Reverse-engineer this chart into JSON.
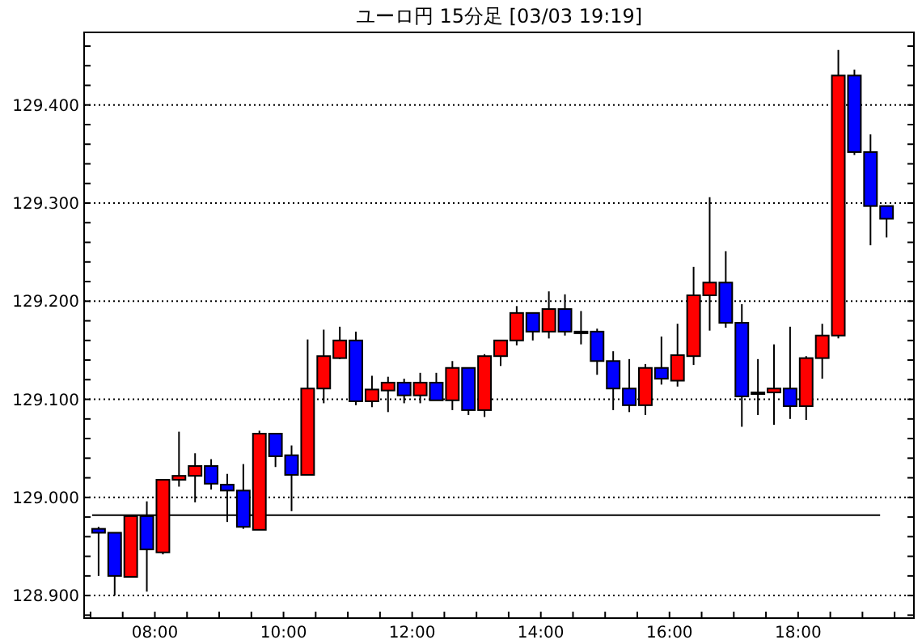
{
  "chart_data": {
    "type": "candlestick",
    "title": "ユーロ円 15分足 [03/03 19:19]",
    "x": [
      7.125,
      7.375,
      7.625,
      7.875,
      8.125,
      8.375,
      8.625,
      8.875,
      9.125,
      9.375,
      9.625,
      9.875,
      10.125,
      10.375,
      10.625,
      10.875,
      11.125,
      11.375,
      11.625,
      11.875,
      12.125,
      12.375,
      12.625,
      12.875,
      13.125,
      13.375,
      13.625,
      13.875,
      14.125,
      14.375,
      14.625,
      14.875,
      15.125,
      15.375,
      15.625,
      15.875,
      16.125,
      16.375,
      16.625,
      16.875,
      17.125,
      17.375,
      17.625,
      17.875,
      18.125,
      18.375,
      18.625,
      18.875,
      19.125,
      19.375
    ],
    "ohlc": [
      [
        128.968,
        128.97,
        128.92,
        128.964
      ],
      [
        128.964,
        128.964,
        128.9,
        128.92
      ],
      [
        128.919,
        128.981,
        128.919,
        128.981
      ],
      [
        128.981,
        128.996,
        128.904,
        128.947
      ],
      [
        128.944,
        129.018,
        128.942,
        129.018
      ],
      [
        129.018,
        129.067,
        129.011,
        129.022
      ],
      [
        129.022,
        129.045,
        128.995,
        129.032
      ],
      [
        129.032,
        129.039,
        129.008,
        129.014
      ],
      [
        129.013,
        129.024,
        128.975,
        129.007
      ],
      [
        129.007,
        129.034,
        128.968,
        128.97
      ],
      [
        128.967,
        129.068,
        128.967,
        129.065
      ],
      [
        129.065,
        129.065,
        129.031,
        129.042
      ],
      [
        129.043,
        129.053,
        128.986,
        129.023
      ],
      [
        129.023,
        129.161,
        129.023,
        129.111
      ],
      [
        129.111,
        129.171,
        129.096,
        129.144
      ],
      [
        129.142,
        129.174,
        129.141,
        129.16
      ],
      [
        129.16,
        129.169,
        129.094,
        129.098
      ],
      [
        129.098,
        129.124,
        129.092,
        129.11
      ],
      [
        129.109,
        129.123,
        129.087,
        129.117
      ],
      [
        129.117,
        129.121,
        129.096,
        129.104
      ],
      [
        129.104,
        129.127,
        129.096,
        129.117
      ],
      [
        129.117,
        129.127,
        129.099,
        129.099
      ],
      [
        129.099,
        129.139,
        129.089,
        129.132
      ],
      [
        129.132,
        129.132,
        129.084,
        129.089
      ],
      [
        129.089,
        129.146,
        129.082,
        129.144
      ],
      [
        129.144,
        129.16,
        129.134,
        129.16
      ],
      [
        129.16,
        129.195,
        129.155,
        129.188
      ],
      [
        129.188,
        129.188,
        129.16,
        129.169
      ],
      [
        129.169,
        129.21,
        129.162,
        129.192
      ],
      [
        129.192,
        129.207,
        129.165,
        129.169
      ],
      [
        129.169,
        129.19,
        129.156,
        129.169
      ],
      [
        129.169,
        129.172,
        129.125,
        129.139
      ],
      [
        129.139,
        129.149,
        129.089,
        129.111
      ],
      [
        129.111,
        129.141,
        129.087,
        129.094
      ],
      [
        129.094,
        129.136,
        129.084,
        129.132
      ],
      [
        129.132,
        129.164,
        129.115,
        129.121
      ],
      [
        129.119,
        129.177,
        129.113,
        129.145
      ],
      [
        129.144,
        129.235,
        129.135,
        129.206
      ],
      [
        129.206,
        129.306,
        129.17,
        129.219
      ],
      [
        129.219,
        129.251,
        129.173,
        129.178
      ],
      [
        129.178,
        129.197,
        129.072,
        129.103
      ],
      [
        129.107,
        129.141,
        129.084,
        129.107
      ],
      [
        129.107,
        129.156,
        129.074,
        129.111
      ],
      [
        129.111,
        129.174,
        129.08,
        129.093
      ],
      [
        129.093,
        129.144,
        129.079,
        129.142
      ],
      [
        129.142,
        129.177,
        129.121,
        129.165
      ],
      [
        129.165,
        129.456,
        129.162,
        129.43
      ],
      [
        129.43,
        129.436,
        129.349,
        129.352
      ],
      [
        129.352,
        129.37,
        129.257,
        129.297
      ],
      [
        129.297,
        129.297,
        129.265,
        129.284
      ]
    ],
    "colors": [
      "#0000ff",
      "#0000ff",
      "#ff0000",
      "#0000ff",
      "#ff0000",
      "#ff0000",
      "#ff0000",
      "#0000ff",
      "#0000ff",
      "#0000ff",
      "#ff0000",
      "#0000ff",
      "#0000ff",
      "#ff0000",
      "#ff0000",
      "#ff0000",
      "#0000ff",
      "#ff0000",
      "#ff0000",
      "#0000ff",
      "#ff0000",
      "#0000ff",
      "#ff0000",
      "#0000ff",
      "#ff0000",
      "#ff0000",
      "#ff0000",
      "#0000ff",
      "#ff0000",
      "#0000ff",
      "#000000",
      "#0000ff",
      "#0000ff",
      "#0000ff",
      "#ff0000",
      "#0000ff",
      "#ff0000",
      "#ff0000",
      "#ff0000",
      "#0000ff",
      "#0000ff",
      "#000000",
      "#ff0000",
      "#0000ff",
      "#ff0000",
      "#ff0000",
      "#ff0000",
      "#0000ff",
      "#0000ff",
      "#0000ff"
    ],
    "xlim": [
      6.9,
      19.8
    ],
    "xticks": [
      {
        "value": 7,
        "label": null
      },
      {
        "value": 7.5,
        "label": null
      },
      {
        "value": 8,
        "label": "08:00"
      },
      {
        "value": 8.5,
        "label": null
      },
      {
        "value": 9,
        "label": null
      },
      {
        "value": 9.5,
        "label": null
      },
      {
        "value": 10,
        "label": "10:00"
      },
      {
        "value": 10.5,
        "label": null
      },
      {
        "value": 11,
        "label": null
      },
      {
        "value": 11.5,
        "label": null
      },
      {
        "value": 12,
        "label": "12:00"
      },
      {
        "value": 12.5,
        "label": null
      },
      {
        "value": 13,
        "label": null
      },
      {
        "value": 13.5,
        "label": null
      },
      {
        "value": 14,
        "label": "14:00"
      },
      {
        "value": 14.5,
        "label": null
      },
      {
        "value": 15,
        "label": null
      },
      {
        "value": 15.5,
        "label": null
      },
      {
        "value": 16,
        "label": "16:00"
      },
      {
        "value": 16.5,
        "label": null
      },
      {
        "value": 17,
        "label": null
      },
      {
        "value": 17.5,
        "label": null
      },
      {
        "value": 18,
        "label": "18:00"
      },
      {
        "value": 18.5,
        "label": null
      },
      {
        "value": 19,
        "label": null
      },
      {
        "value": 19.5,
        "label": null
      }
    ],
    "ylim": [
      128.877,
      129.474
    ],
    "yticks": [
      {
        "value": 128.88,
        "label": null
      },
      {
        "value": 128.9,
        "label": "128.900"
      },
      {
        "value": 128.92,
        "label": null
      },
      {
        "value": 128.94,
        "label": null
      },
      {
        "value": 128.96,
        "label": null
      },
      {
        "value": 128.98,
        "label": null
      },
      {
        "value": 129.0,
        "label": "129.000"
      },
      {
        "value": 129.02,
        "label": null
      },
      {
        "value": 129.04,
        "label": null
      },
      {
        "value": 129.06,
        "label": null
      },
      {
        "value": 129.08,
        "label": null
      },
      {
        "value": 129.1,
        "label": "129.100"
      },
      {
        "value": 129.12,
        "label": null
      },
      {
        "value": 129.14,
        "label": null
      },
      {
        "value": 129.16,
        "label": null
      },
      {
        "value": 129.18,
        "label": null
      },
      {
        "value": 129.2,
        "label": "129.200"
      },
      {
        "value": 129.22,
        "label": null
      },
      {
        "value": 129.24,
        "label": null
      },
      {
        "value": 129.26,
        "label": null
      },
      {
        "value": 129.28,
        "label": null
      },
      {
        "value": 129.3,
        "label": "129.300"
      },
      {
        "value": 129.32,
        "label": null
      },
      {
        "value": 129.34,
        "label": null
      },
      {
        "value": 129.36,
        "label": null
      },
      {
        "value": 129.38,
        "label": null
      },
      {
        "value": 129.4,
        "label": "129.400"
      },
      {
        "value": 129.42,
        "label": null
      },
      {
        "value": 129.44,
        "label": null
      },
      {
        "value": 129.46,
        "label": null
      }
    ],
    "grid": "y",
    "ref_lines": [
      {
        "axis": "y",
        "value": 128.982,
        "color": "#000000"
      }
    ]
  }
}
